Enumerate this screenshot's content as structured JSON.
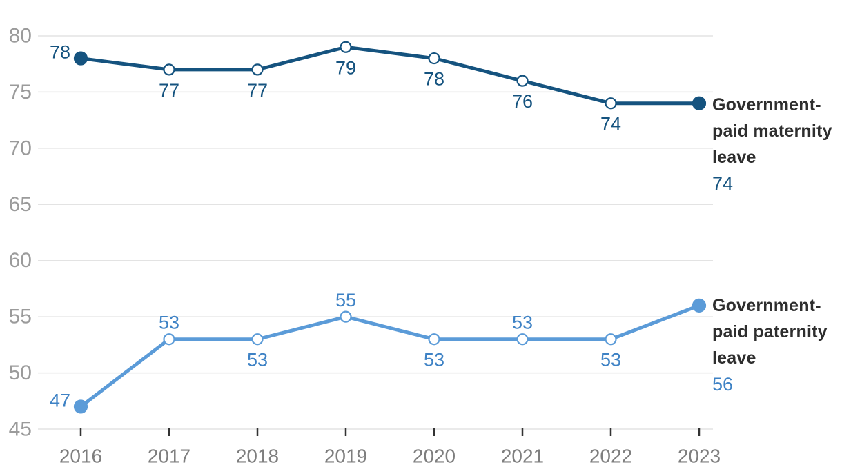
{
  "chart_data": {
    "type": "line",
    "x": [
      2016,
      2017,
      2018,
      2019,
      2020,
      2021,
      2022,
      2023
    ],
    "series": [
      {
        "name": "Government-paid maternity leave",
        "color": "#15537F",
        "label_color": "#15537F",
        "values": [
          78,
          77,
          77,
          79,
          78,
          76,
          74,
          74
        ],
        "label_positions": [
          "left",
          "below",
          "below",
          "below",
          "below",
          "below",
          "below",
          "none"
        ],
        "end_value": 74
      },
      {
        "name": "Government-paid paternity leave",
        "color": "#5B9BD8",
        "label_color": "#3E82C5",
        "values": [
          47,
          53,
          53,
          55,
          53,
          53,
          53,
          56
        ],
        "label_positions": [
          "left",
          "above",
          "below",
          "above",
          "below",
          "above",
          "below",
          "none"
        ],
        "end_value": 56
      }
    ],
    "ylim": [
      45,
      80
    ],
    "yticks": [
      45,
      50,
      55,
      60,
      65,
      70,
      75,
      80
    ],
    "grid": true,
    "legend_position": "right",
    "colors": {
      "gridline": "#e3e3e3",
      "axis_tick": "#333333",
      "y_tick_label": "#9b9b9b",
      "x_tick_label": "#7e7e7e",
      "legend_text": "#2e2e2e",
      "background": "#ffffff"
    }
  }
}
